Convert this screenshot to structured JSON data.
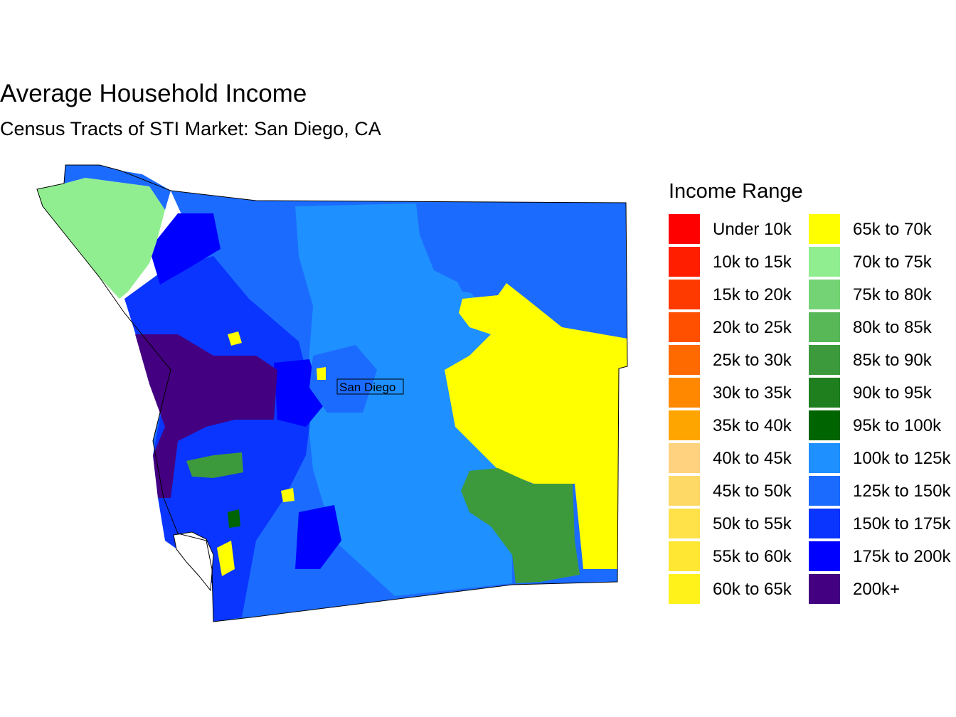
{
  "title": "Average Household Income",
  "subtitle": "Census Tracts of STI Market: San Diego, CA",
  "map": {
    "city_label": "San Diego",
    "fill_colors": {
      "coast_north": "#90ee90",
      "base_blue": "#1e90ff",
      "mid_blue": "#1c6bff",
      "deep_blue": "#0a35ff",
      "bright_blue": "#0000ff",
      "purple": "#430080",
      "yellow": "#ffff00",
      "green": "#3c9a3c",
      "dark_green": "#006400"
    }
  },
  "legend": {
    "title": "Income Range",
    "columns": [
      [
        {
          "label": "Under 10k",
          "color": "#ff0000"
        },
        {
          "label": "10k to 15k",
          "color": "#ff1f00"
        },
        {
          "label": "15k to 20k",
          "color": "#ff3a00"
        },
        {
          "label": "20k to 25k",
          "color": "#ff5000"
        },
        {
          "label": "25k to 30k",
          "color": "#ff6a00"
        },
        {
          "label": "30k to 35k",
          "color": "#ff8800"
        },
        {
          "label": "35k to 40k",
          "color": "#ffa500"
        },
        {
          "label": "40k to 45k",
          "color": "#ffd27f"
        },
        {
          "label": "45k to 50k",
          "color": "#ffd966"
        },
        {
          "label": "50k to 55k",
          "color": "#ffe14a"
        },
        {
          "label": "55k to 60k",
          "color": "#ffe733"
        },
        {
          "label": "60k to 65k",
          "color": "#fff21a"
        }
      ],
      [
        {
          "label": "65k to 70k",
          "color": "#ffff00"
        },
        {
          "label": "70k to 75k",
          "color": "#90ee90"
        },
        {
          "label": "75k to 80k",
          "color": "#74d374"
        },
        {
          "label": "80k to 85k",
          "color": "#58b858"
        },
        {
          "label": "85k to 90k",
          "color": "#3c9a3c"
        },
        {
          "label": "90k to 95k",
          "color": "#1f7f1f"
        },
        {
          "label": "95k to 100k",
          "color": "#006400"
        },
        {
          "label": "100k to 125k",
          "color": "#1e90ff"
        },
        {
          "label": "125k to 150k",
          "color": "#1c6bff"
        },
        {
          "label": "150k to 175k",
          "color": "#0a35ff"
        },
        {
          "label": "175k to 200k",
          "color": "#0000ff"
        },
        {
          "label": "200k+",
          "color": "#430080"
        }
      ]
    ]
  }
}
